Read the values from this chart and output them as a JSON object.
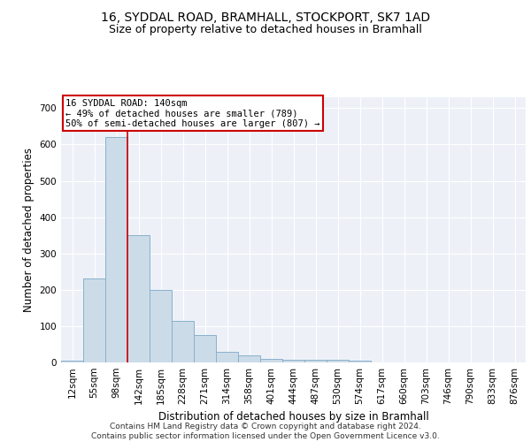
{
  "title1": "16, SYDDAL ROAD, BRAMHALL, STOCKPORT, SK7 1AD",
  "title2": "Size of property relative to detached houses in Bramhall",
  "xlabel": "Distribution of detached houses by size in Bramhall",
  "ylabel": "Number of detached properties",
  "footnote": "Contains HM Land Registry data © Crown copyright and database right 2024.\nContains public sector information licensed under the Open Government Licence v3.0.",
  "categories": [
    "12sqm",
    "55sqm",
    "98sqm",
    "142sqm",
    "185sqm",
    "228sqm",
    "271sqm",
    "314sqm",
    "358sqm",
    "401sqm",
    "444sqm",
    "487sqm",
    "530sqm",
    "574sqm",
    "617sqm",
    "660sqm",
    "703sqm",
    "746sqm",
    "790sqm",
    "833sqm",
    "876sqm"
  ],
  "bar_heights": [
    5,
    230,
    620,
    350,
    200,
    115,
    75,
    30,
    20,
    10,
    8,
    8,
    7,
    6,
    0,
    0,
    0,
    0,
    0,
    0,
    0
  ],
  "bar_color": "#ccdbe8",
  "bar_edgecolor": "#8ab0cc",
  "bar_linewidth": 0.7,
  "vline_x_index": 2.5,
  "vline_color": "#cc0000",
  "vline_linewidth": 1.2,
  "annotation_lines": [
    "16 SYDDAL ROAD: 140sqm",
    "← 49% of detached houses are smaller (789)",
    "50% of semi-detached houses are larger (807) →"
  ],
  "annotation_box_color": "#cc0000",
  "ylim": [
    0,
    730
  ],
  "yticks": [
    0,
    100,
    200,
    300,
    400,
    500,
    600,
    700
  ],
  "background_color": "#edf1f7",
  "grid_color": "#ffffff",
  "title1_fontsize": 10,
  "title2_fontsize": 9,
  "axis_label_fontsize": 8.5,
  "tick_fontsize": 7.5,
  "annotation_fontsize": 7.5,
  "footnote_fontsize": 6.5
}
